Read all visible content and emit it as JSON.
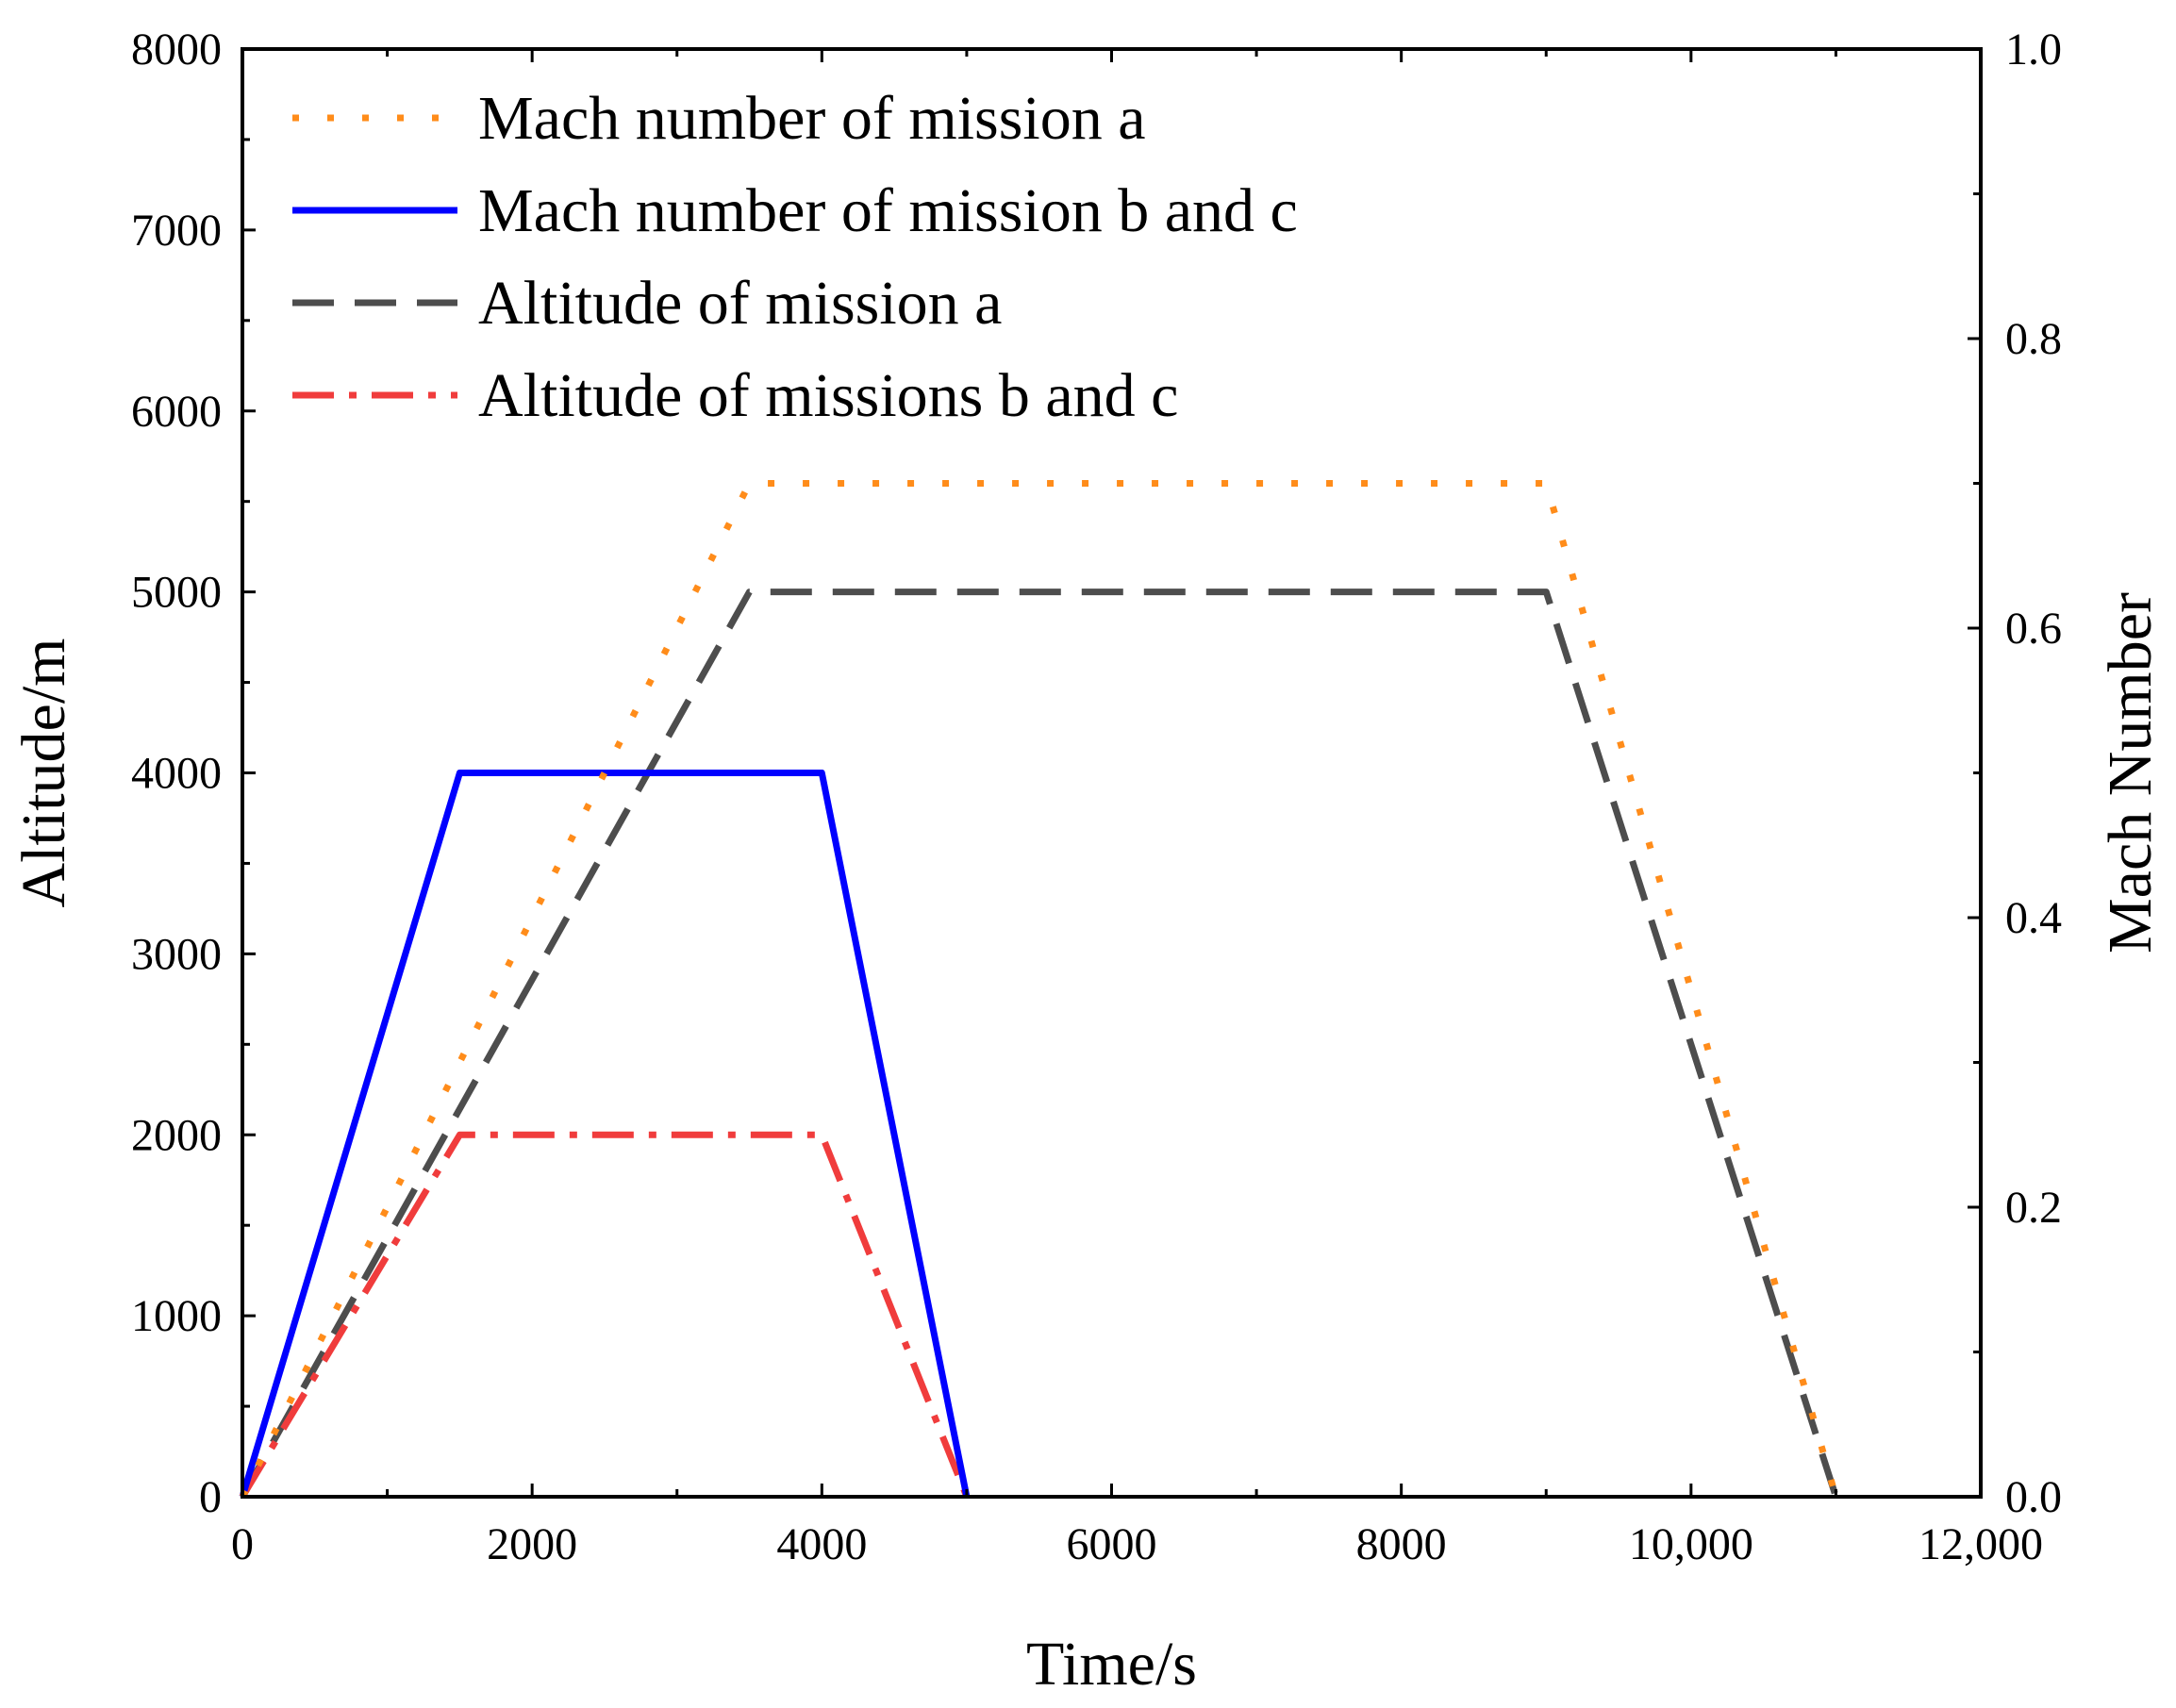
{
  "chart_data": {
    "type": "line",
    "title": "",
    "xlabel": "Time/s",
    "ylabel": "Altitude/m",
    "y2label": "Mach Number",
    "xlim": [
      0,
      12000
    ],
    "ylim": [
      0,
      8000
    ],
    "y2lim": [
      0.0,
      1.0
    ],
    "x_ticks": [
      0,
      2000,
      4000,
      6000,
      8000,
      10000,
      12000
    ],
    "x_tick_labels": [
      "0",
      "2000",
      "4000",
      "6000",
      "8000",
      "10,000",
      "12,000"
    ],
    "y_ticks": [
      0,
      1000,
      2000,
      3000,
      4000,
      5000,
      6000,
      7000,
      8000
    ],
    "y_tick_labels": [
      "0",
      "1000",
      "2000",
      "3000",
      "4000",
      "5000",
      "6000",
      "7000",
      "8000"
    ],
    "y2_ticks": [
      0.0,
      0.2,
      0.4,
      0.6,
      0.8,
      1.0
    ],
    "y2_tick_labels": [
      "0.0",
      "0.2",
      "0.4",
      "0.6",
      "0.8",
      "1.0"
    ],
    "grid": false,
    "legend_position": "top-left",
    "series": [
      {
        "name": "Mach number of mission a",
        "axis": "right",
        "style": "dotted",
        "color": "#FF8C1A",
        "x": [
          0,
          3500,
          9000,
          11000
        ],
        "y": [
          0.0,
          0.7,
          0.7,
          0.0
        ]
      },
      {
        "name": "Mach number of mission b and c",
        "axis": "right",
        "style": "solid",
        "color": "#0000FF",
        "x": [
          0,
          1500,
          4000,
          5000
        ],
        "y": [
          0.0,
          0.5,
          0.5,
          0.0
        ]
      },
      {
        "name": "Altitude of mission a",
        "axis": "left",
        "style": "dashed",
        "color": "#4D4D4D",
        "x": [
          0,
          3500,
          9000,
          11000
        ],
        "y": [
          0,
          5000,
          5000,
          0
        ]
      },
      {
        "name": "Altitude of missions b and c",
        "axis": "left",
        "style": "dashdot",
        "color": "#F03C3C",
        "x": [
          0,
          1500,
          4000,
          5000
        ],
        "y": [
          0,
          2000,
          2000,
          0
        ]
      }
    ]
  }
}
